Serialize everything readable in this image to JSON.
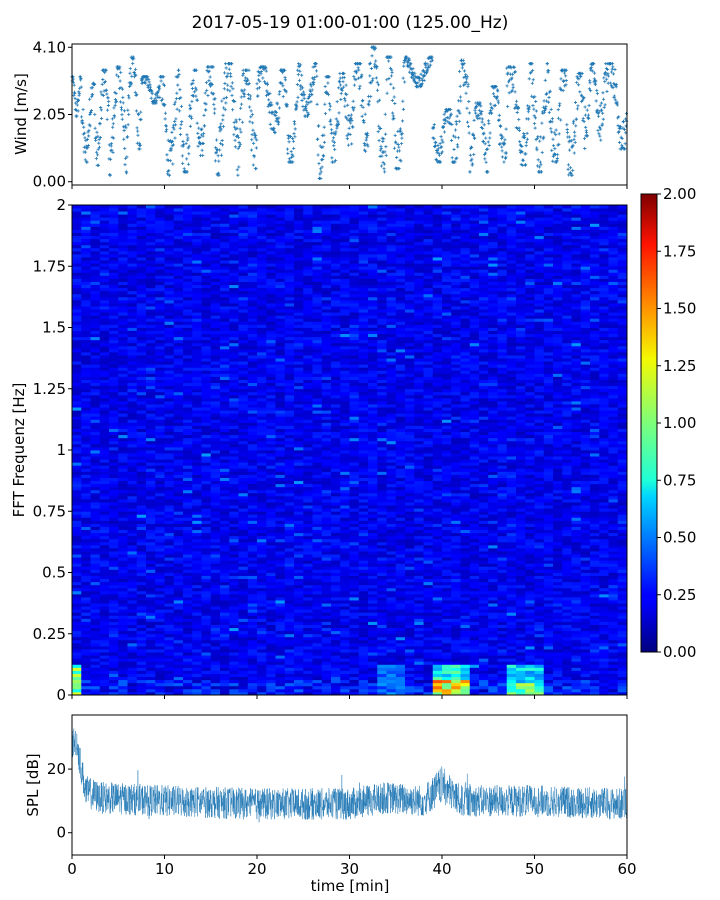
{
  "figure": {
    "title": "2017-05-19 01:00-01:00 (125.00_Hz)"
  },
  "chart_data": [
    {
      "type": "scatter",
      "name": "wind",
      "ylabel": "Wind [m/s]",
      "xlabel": "",
      "xlim": [
        0,
        60
      ],
      "ylim": [
        -0.1,
        4.2
      ],
      "yticks": [
        "0.00",
        "2.05",
        "4.10"
      ],
      "ytick_values": [
        0.0,
        2.05,
        4.1
      ],
      "color": "#1f77b4",
      "marker": "+",
      "segments": [
        {
          "t0": 0.0,
          "t1": 1.0,
          "hi": 3.2,
          "lo": 2.0
        },
        {
          "t0": 1.0,
          "t1": 2.5,
          "hi": 3.0,
          "lo": 0.6
        },
        {
          "t0": 2.5,
          "t1": 4.0,
          "hi": 3.4,
          "lo": 0.5
        },
        {
          "t0": 4.0,
          "t1": 6.0,
          "hi": 3.5,
          "lo": 0.2
        },
        {
          "t0": 6.0,
          "t1": 7.5,
          "hi": 3.8,
          "lo": 1.0
        },
        {
          "t0": 7.5,
          "t1": 9.5,
          "hi": 3.2,
          "lo": 2.4
        },
        {
          "t0": 9.5,
          "t1": 11.5,
          "hi": 3.2,
          "lo": 0.2
        },
        {
          "t0": 11.5,
          "t1": 13.5,
          "hi": 3.4,
          "lo": 0.3
        },
        {
          "t0": 13.5,
          "t1": 15.5,
          "hi": 3.5,
          "lo": 0.8
        },
        {
          "t0": 15.5,
          "t1": 18.0,
          "hi": 3.6,
          "lo": 0.2
        },
        {
          "t0": 18.0,
          "t1": 20.0,
          "hi": 3.4,
          "lo": 0.4
        },
        {
          "t0": 20.0,
          "t1": 22.5,
          "hi": 3.5,
          "lo": 1.5
        },
        {
          "t0": 22.5,
          "t1": 24.5,
          "hi": 3.4,
          "lo": 0.6
        },
        {
          "t0": 24.5,
          "t1": 26.5,
          "hi": 3.6,
          "lo": 2.0
        },
        {
          "t0": 26.5,
          "t1": 28.0,
          "hi": 3.2,
          "lo": 0.1
        },
        {
          "t0": 28.0,
          "t1": 30.0,
          "hi": 3.3,
          "lo": 0.6
        },
        {
          "t0": 30.0,
          "t1": 32.0,
          "hi": 3.6,
          "lo": 0.9
        },
        {
          "t0": 32.0,
          "t1": 34.0,
          "hi": 4.1,
          "lo": 0.3
        },
        {
          "t0": 34.0,
          "t1": 36.0,
          "hi": 3.8,
          "lo": 0.4
        },
        {
          "t0": 36.0,
          "t1": 39.0,
          "hi": 3.8,
          "lo": 2.9
        },
        {
          "t0": 39.0,
          "t1": 41.0,
          "hi": 2.2,
          "lo": 0.6
        },
        {
          "t0": 41.0,
          "t1": 43.0,
          "hi": 3.7,
          "lo": 0.6
        },
        {
          "t0": 43.0,
          "t1": 45.0,
          "hi": 2.4,
          "lo": 0.3
        },
        {
          "t0": 45.0,
          "t1": 47.0,
          "hi": 2.9,
          "lo": 0.6
        },
        {
          "t0": 47.0,
          "t1": 49.5,
          "hi": 3.5,
          "lo": 0.5
        },
        {
          "t0": 49.5,
          "t1": 51.5,
          "hi": 3.6,
          "lo": 0.3
        },
        {
          "t0": 51.5,
          "t1": 53.5,
          "hi": 3.4,
          "lo": 0.6
        },
        {
          "t0": 53.5,
          "t1": 55.5,
          "hi": 3.3,
          "lo": 0.2
        },
        {
          "t0": 55.5,
          "t1": 57.0,
          "hi": 3.6,
          "lo": 1.4
        },
        {
          "t0": 57.0,
          "t1": 60.0,
          "hi": 3.6,
          "lo": 1.0
        }
      ]
    },
    {
      "type": "heatmap",
      "name": "spectrogram",
      "ylabel": "FFT Frequenz [Hz]",
      "xlabel": "",
      "xlim": [
        0,
        60
      ],
      "ylim": [
        0,
        2
      ],
      "yticks": [
        "0",
        "0.25",
        "0.5",
        "0.75",
        "1",
        "1.25",
        "1.5",
        "1.75",
        "2"
      ],
      "ytick_values": [
        0,
        0.25,
        0.5,
        0.75,
        1.0,
        1.25,
        1.5,
        1.75,
        2.0
      ],
      "colormap": "jet",
      "colorbar": {
        "range": [
          0,
          2
        ],
        "ticks": [
          "0.00",
          "0.25",
          "0.50",
          "0.75",
          "1.00",
          "1.25",
          "1.50",
          "1.75",
          "2.00"
        ],
        "tick_values": [
          0,
          0.25,
          0.5,
          0.75,
          1.0,
          1.25,
          1.5,
          1.75,
          2.0
        ]
      },
      "background_level": 0.22,
      "hotspots": [
        {
          "t0": 39.0,
          "t1": 43.0,
          "f0": 0.0,
          "f1": 0.13,
          "level": 0.85
        },
        {
          "t0": 39.0,
          "t1": 43.0,
          "f0": 0.0,
          "f1": 0.06,
          "level": 1.4
        },
        {
          "t0": 47.0,
          "t1": 51.0,
          "f0": 0.0,
          "f1": 0.13,
          "level": 0.75
        },
        {
          "t0": 47.0,
          "t1": 51.0,
          "f0": 0.0,
          "f1": 0.05,
          "level": 1.0
        },
        {
          "t0": 0.0,
          "t1": 1.0,
          "f0": 0.0,
          "f1": 0.12,
          "level": 1.1
        },
        {
          "t0": 33.0,
          "t1": 35.5,
          "f0": 0.0,
          "f1": 0.12,
          "level": 0.5
        }
      ]
    },
    {
      "type": "line",
      "name": "spl",
      "ylabel": "SPL [dB]",
      "xlabel": "time [min]",
      "xlim": [
        0,
        60
      ],
      "ylim": [
        -7,
        37
      ],
      "xticks": [
        "0",
        "10",
        "20",
        "30",
        "40",
        "50",
        "60"
      ],
      "xtick_values": [
        0,
        10,
        20,
        30,
        40,
        50,
        60
      ],
      "yticks": [
        "0",
        "20"
      ],
      "ytick_values": [
        0,
        20
      ],
      "color": "#1f77b4",
      "envelope": [
        {
          "t": 0.0,
          "mean": 28,
          "spread": 5
        },
        {
          "t": 0.5,
          "mean": 29,
          "spread": 5
        },
        {
          "t": 1.0,
          "mean": 20,
          "spread": 5
        },
        {
          "t": 1.5,
          "mean": 13,
          "spread": 5
        },
        {
          "t": 3.0,
          "mean": 11,
          "spread": 5
        },
        {
          "t": 10.0,
          "mean": 10,
          "spread": 5
        },
        {
          "t": 20.0,
          "mean": 9,
          "spread": 5
        },
        {
          "t": 30.0,
          "mean": 9,
          "spread": 5
        },
        {
          "t": 34.0,
          "mean": 11,
          "spread": 5
        },
        {
          "t": 38.0,
          "mean": 10,
          "spread": 5
        },
        {
          "t": 40.0,
          "mean": 15,
          "spread": 6
        },
        {
          "t": 42.0,
          "mean": 10,
          "spread": 5
        },
        {
          "t": 50.0,
          "mean": 10,
          "spread": 5
        },
        {
          "t": 60.0,
          "mean": 9,
          "spread": 5
        }
      ]
    }
  ]
}
